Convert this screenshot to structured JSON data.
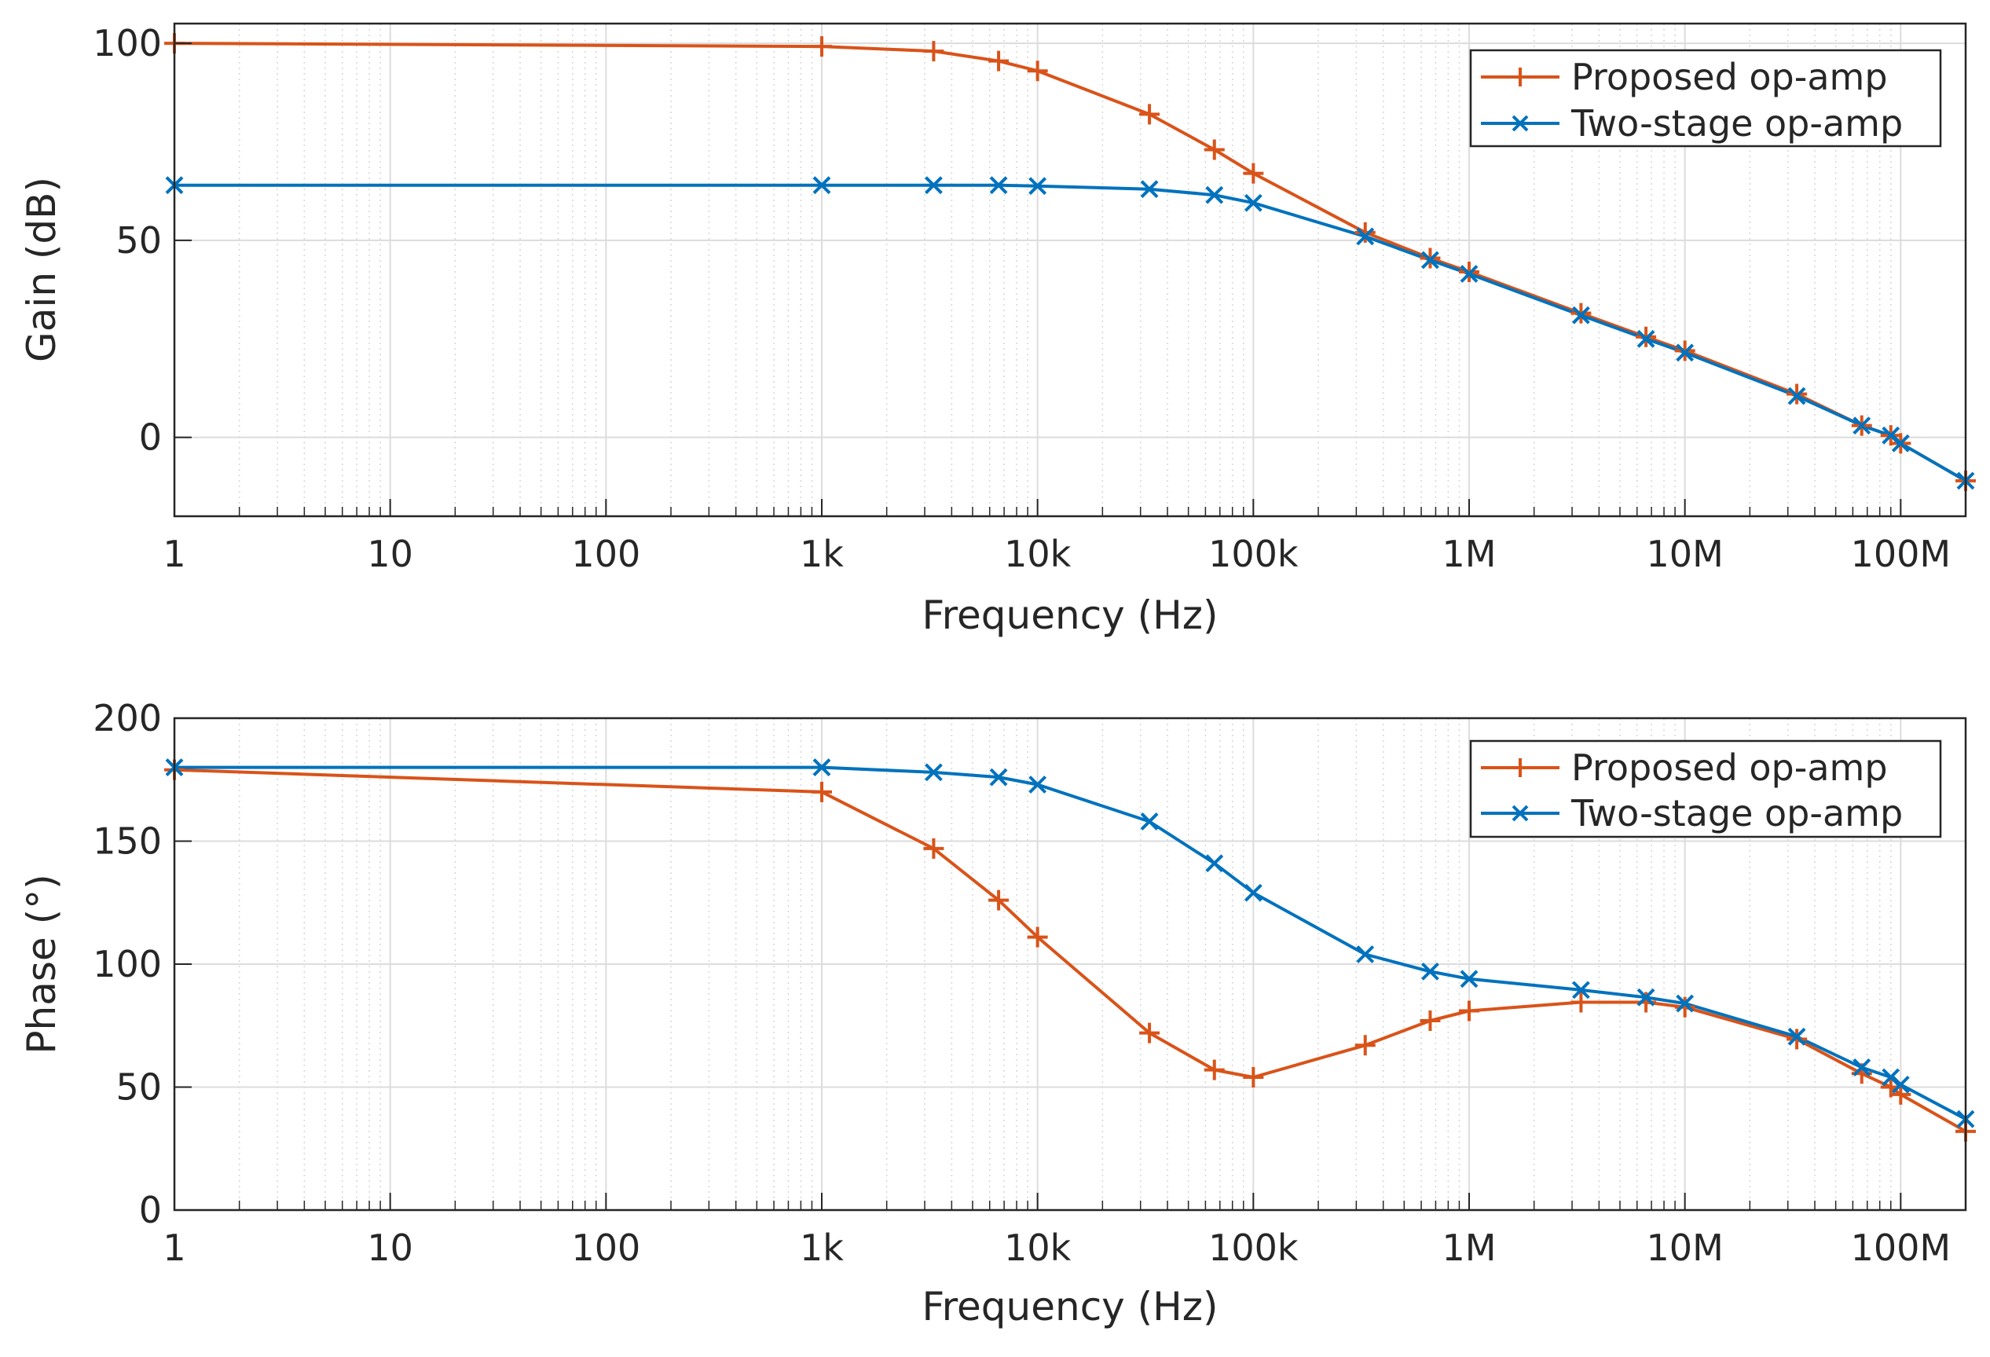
{
  "chart_data": [
    {
      "type": "line",
      "xscale": "log",
      "xlabel": "Frequency (Hz)",
      "ylabel": "Gain (dB)",
      "xlim": [
        1,
        200000000
      ],
      "ylim": [
        -20,
        105
      ],
      "xticks": [
        1,
        10,
        100,
        1000,
        10000,
        100000,
        1000000,
        10000000,
        100000000
      ],
      "xtick_labels": [
        "1",
        "10",
        "100",
        "1k",
        "10k",
        "100k",
        "1M",
        "10M",
        "100M"
      ],
      "yticks": [
        0,
        50,
        100
      ],
      "ytick_labels": [
        "0",
        "50",
        "100"
      ],
      "grid": true,
      "legend_position": "top-right",
      "series": [
        {
          "name": "Proposed op-amp",
          "color": "#d95319",
          "marker": "plus",
          "x": [
            1,
            1000,
            3300,
            6600,
            10000,
            33000,
            66000,
            100000,
            330000,
            660000,
            1000000,
            3300000,
            6600000,
            10000000,
            33000000,
            66000000,
            90000000,
            100000000,
            200000000
          ],
          "y": [
            100,
            99.2,
            98,
            95.5,
            93,
            82,
            73,
            67,
            52,
            45.5,
            42,
            31.5,
            25.5,
            22,
            11,
            3,
            0.5,
            -1.5,
            -11
          ]
        },
        {
          "name": "Two-stage op-amp",
          "color": "#0072bd",
          "marker": "x",
          "x": [
            1,
            1000,
            3300,
            6600,
            10000,
            33000,
            66000,
            100000,
            330000,
            660000,
            1000000,
            3300000,
            6600000,
            10000000,
            33000000,
            66000000,
            90000000,
            100000000,
            200000000
          ],
          "y": [
            64,
            64,
            64,
            64,
            63.8,
            63,
            61.5,
            59.5,
            51,
            45,
            41.5,
            31,
            25,
            21.5,
            10.5,
            3,
            0.5,
            -1.5,
            -11
          ]
        }
      ]
    },
    {
      "type": "line",
      "xscale": "log",
      "xlabel": "Frequency (Hz)",
      "ylabel": "Phase (°)",
      "xlim": [
        1,
        200000000
      ],
      "ylim": [
        0,
        200
      ],
      "xticks": [
        1,
        10,
        100,
        1000,
        10000,
        100000,
        1000000,
        10000000,
        100000000
      ],
      "xtick_labels": [
        "1",
        "10",
        "100",
        "1k",
        "10k",
        "100k",
        "1M",
        "10M",
        "100M"
      ],
      "yticks": [
        0,
        50,
        100,
        150,
        200
      ],
      "ytick_labels": [
        "0",
        "50",
        "100",
        "150",
        "200"
      ],
      "grid": true,
      "legend_position": "top-right",
      "series": [
        {
          "name": "Proposed op-amp",
          "color": "#d95319",
          "marker": "plus",
          "x": [
            1,
            1000,
            3300,
            6600,
            10000,
            33000,
            66000,
            100000,
            330000,
            660000,
            1000000,
            3300000,
            6600000,
            10000000,
            33000000,
            66000000,
            90000000,
            100000000,
            200000000
          ],
          "y": [
            179,
            170,
            147,
            126,
            111,
            72,
            57,
            54,
            67,
            77,
            81,
            84.5,
            84.5,
            82.5,
            69.5,
            55.5,
            50,
            47,
            32
          ]
        },
        {
          "name": "Two-stage op-amp",
          "color": "#0072bd",
          "marker": "x",
          "x": [
            1,
            1000,
            3300,
            6600,
            10000,
            33000,
            66000,
            100000,
            330000,
            660000,
            1000000,
            3300000,
            6600000,
            10000000,
            33000000,
            66000000,
            90000000,
            100000000,
            200000000
          ],
          "y": [
            180,
            180,
            178,
            176,
            173,
            158,
            141,
            129,
            104,
            97,
            94,
            89.5,
            86.5,
            84,
            70.5,
            58,
            54,
            51,
            37
          ]
        }
      ]
    }
  ]
}
